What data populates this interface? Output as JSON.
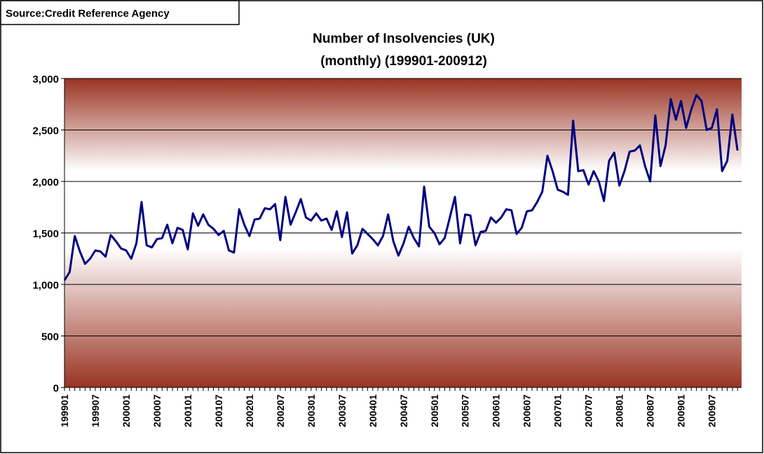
{
  "chart_data": {
    "type": "line",
    "source": "Source:Credit Reference Agency",
    "title": "Number of Insolvencies (UK)",
    "subtitle": "(monthly) (199901-200912)",
    "categories": [
      "199901",
      null,
      null,
      null,
      null,
      null,
      "199907",
      null,
      null,
      null,
      null,
      null,
      "200001",
      null,
      null,
      null,
      null,
      null,
      "200007",
      null,
      null,
      null,
      null,
      null,
      "200101",
      null,
      null,
      null,
      null,
      null,
      "200107",
      null,
      null,
      null,
      null,
      null,
      "200201",
      null,
      null,
      null,
      null,
      null,
      "200207",
      null,
      null,
      null,
      null,
      null,
      "200301",
      null,
      null,
      null,
      null,
      null,
      "200307",
      null,
      null,
      null,
      null,
      null,
      "200401",
      null,
      null,
      null,
      null,
      null,
      "200407",
      null,
      null,
      null,
      null,
      null,
      "200501",
      null,
      null,
      null,
      null,
      null,
      "200507",
      null,
      null,
      null,
      null,
      null,
      "200601",
      null,
      null,
      null,
      null,
      null,
      "200607",
      null,
      null,
      null,
      null,
      null,
      "200701",
      null,
      null,
      null,
      null,
      null,
      "200707",
      null,
      null,
      null,
      null,
      null,
      "200801",
      null,
      null,
      null,
      null,
      null,
      "200807",
      null,
      null,
      null,
      null,
      null,
      "200901",
      null,
      null,
      null,
      null,
      null,
      "200907",
      null,
      null,
      null,
      null,
      null
    ],
    "series": [
      {
        "color": "#000080",
        "values": [
          1040,
          1120,
          1470,
          1320,
          1200,
          1250,
          1330,
          1320,
          1270,
          1480,
          1420,
          1350,
          1330,
          1250,
          1400,
          1800,
          1380,
          1360,
          1440,
          1450,
          1580,
          1400,
          1550,
          1530,
          1340,
          1690,
          1570,
          1680,
          1580,
          1540,
          1480,
          1520,
          1330,
          1310,
          1730,
          1580,
          1470,
          1630,
          1640,
          1740,
          1730,
          1780,
          1430,
          1850,
          1580,
          1700,
          1830,
          1650,
          1620,
          1690,
          1620,
          1640,
          1530,
          1710,
          1460,
          1700,
          1300,
          1380,
          1540,
          1490,
          1440,
          1380,
          1470,
          1680,
          1420,
          1280,
          1400,
          1560,
          1450,
          1370,
          1950,
          1560,
          1500,
          1390,
          1450,
          1650,
          1850,
          1400,
          1680,
          1670,
          1380,
          1510,
          1520,
          1650,
          1600,
          1650,
          1730,
          1720,
          1490,
          1550,
          1710,
          1720,
          1800,
          1900,
          2250,
          2100,
          1920,
          1900,
          1870,
          2590,
          2100,
          2110,
          1970,
          2100,
          2000,
          1810,
          2200,
          2280,
          1960,
          2100,
          2290,
          2300,
          2350,
          2150,
          2000,
          2640,
          2150,
          2350,
          2800,
          2600,
          2780,
          2520,
          2700,
          2840,
          2780,
          2500,
          2520,
          2700,
          2100,
          2200,
          2650,
          2300
        ]
      }
    ],
    "ylim": [
      0,
      3000
    ],
    "yticks": [
      0,
      500,
      {
        "value": 1000,
        "label": "1,000"
      },
      {
        "value": 1500,
        "label": "1,500"
      },
      {
        "value": 2000,
        "label": "2,000"
      },
      {
        "value": 2500,
        "label": "2,500"
      },
      {
        "value": 3000,
        "label": "3,000"
      }
    ],
    "grid": true
  }
}
